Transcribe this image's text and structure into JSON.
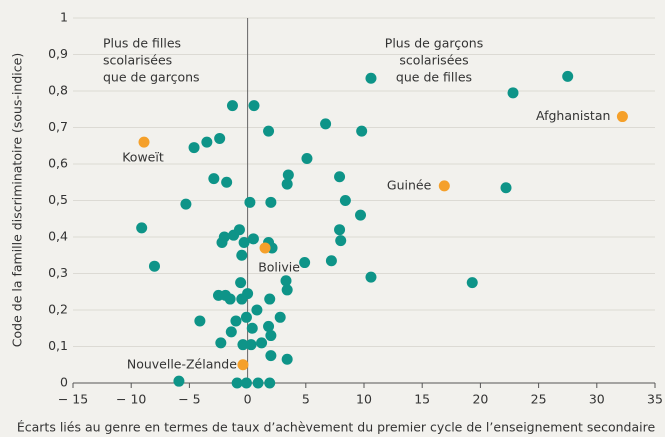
{
  "chart_data": {
    "type": "scatter",
    "xlabel": "Écarts liés au genre en termes de taux d’achèvement du premier cycle de l’enseignement secondaire",
    "ylabel": "Code de la famille discriminatoire (sous-indice)",
    "annotations": [
      [
        "Plus de filles",
        "scolarisées",
        "que de garçons"
      ],
      [
        "Plus de garçons",
        "scolarisées",
        "que de filles"
      ]
    ],
    "xlim": [
      -15,
      35
    ],
    "xticks": [
      {
        "value": -15,
        "label": "− 15"
      },
      {
        "value": -10,
        "label": "− 10"
      },
      {
        "value": -5,
        "label": "− 5"
      },
      0,
      5,
      10,
      15,
      20,
      25,
      30,
      35
    ],
    "ylim": [
      0,
      1
    ],
    "yticks": [
      0,
      {
        "value": 0.1,
        "label": "0,1"
      },
      {
        "value": 0.2,
        "label": "0,2"
      },
      {
        "value": 0.3,
        "label": "0,3"
      },
      {
        "value": 0.4,
        "label": "0,4"
      },
      {
        "value": 0.5,
        "label": "0,5"
      },
      {
        "value": 0.6,
        "label": "0,6"
      },
      {
        "value": 0.7,
        "label": "0,7"
      },
      {
        "value": 0.8,
        "label": "0,8"
      },
      {
        "value": 0.9,
        "label": "0,9"
      },
      1
    ],
    "grid": true,
    "series": [
      {
        "color": "#0e9488",
        "x": [
          -1.3,
          0.55,
          1.8,
          -2.4,
          -3.5,
          -4.6,
          5.1,
          6.7,
          9.8,
          10.6,
          22.8,
          27.5,
          22.2,
          3.5,
          3.4,
          -2.9,
          -1.8,
          7.9,
          8.4,
          0.2,
          2.0,
          -5.3,
          9.7,
          -9.1,
          7.9,
          8.0,
          -0.7,
          -1.2,
          -2.0,
          -2.2,
          -0.3,
          0.5,
          -0.5,
          1.8,
          2.1,
          -8.0,
          4.9,
          7.2,
          10.6,
          19.3,
          3.3,
          3.4,
          -0.6,
          -2.5,
          -1.9,
          -1.5,
          0.0,
          -0.5,
          1.9,
          0.8,
          -4.1,
          -1.0,
          -0.1,
          2.8,
          -1.4,
          0.4,
          1.8,
          2.0,
          -2.3,
          -0.4,
          0.3,
          1.2,
          2.0,
          3.4,
          -5.9,
          -0.9,
          -0.1,
          0.9,
          1.9
        ],
        "values": [
          0.76,
          0.76,
          0.69,
          0.67,
          0.66,
          0.645,
          0.615,
          0.71,
          0.69,
          0.835,
          0.795,
          0.84,
          0.535,
          0.57,
          0.545,
          0.56,
          0.55,
          0.565,
          0.5,
          0.495,
          0.495,
          0.49,
          0.46,
          0.425,
          0.42,
          0.39,
          0.42,
          0.405,
          0.4,
          0.385,
          0.385,
          0.395,
          0.35,
          0.385,
          0.37,
          0.32,
          0.33,
          0.335,
          0.29,
          0.275,
          0.28,
          0.255,
          0.275,
          0.24,
          0.24,
          0.23,
          0.245,
          0.23,
          0.23,
          0.2,
          0.17,
          0.17,
          0.18,
          0.18,
          0.14,
          0.15,
          0.155,
          0.13,
          0.11,
          0.105,
          0.105,
          0.11,
          0.075,
          0.065,
          0.005,
          0,
          0,
          0,
          0
        ]
      },
      {
        "color": "#f5a02a",
        "x": [
          -8.9,
          32.2,
          16.9,
          1.5,
          -0.4
        ],
        "values": [
          0.66,
          0.73,
          0.54,
          0.37,
          0.05
        ],
        "labels": [
          "Koweït",
          "Afghanistan",
          "Guinée",
          "Bolivie",
          "Nouvelle-Zélande"
        ]
      }
    ]
  }
}
